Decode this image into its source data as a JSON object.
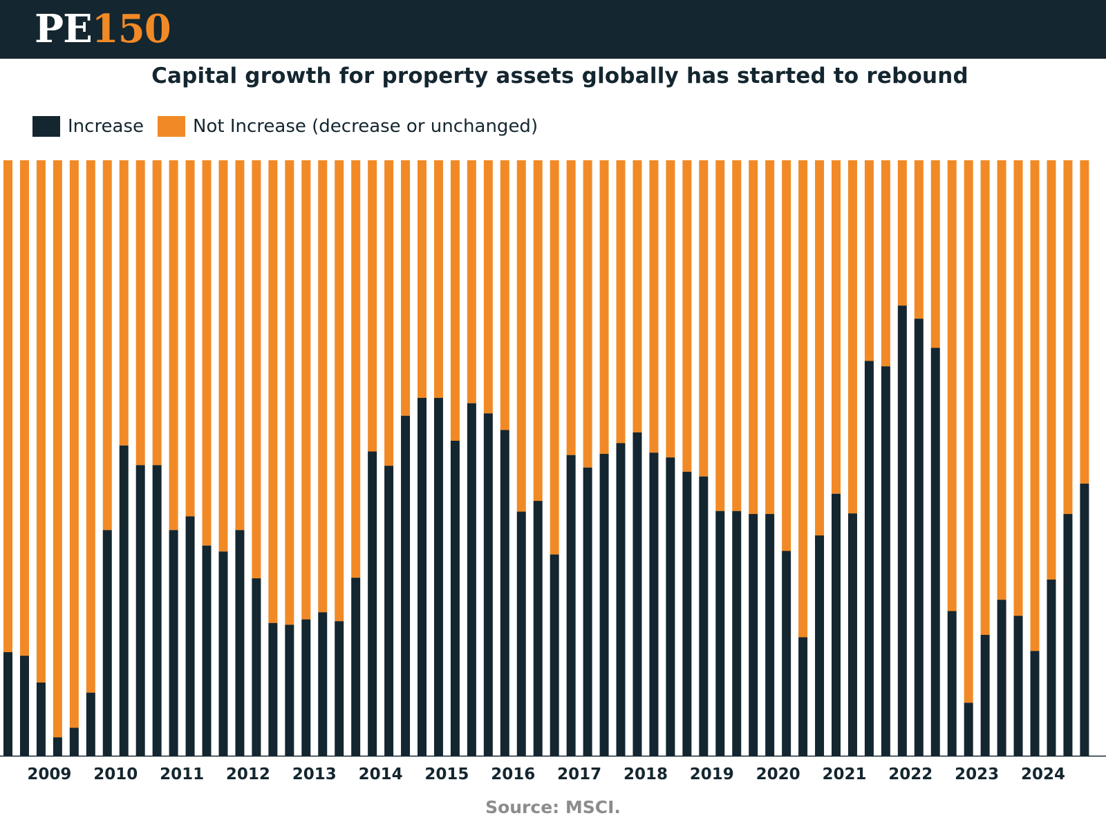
{
  "brand": {
    "pe": "PE",
    "num": "150"
  },
  "colors": {
    "header_bg": "#14262f",
    "increase": "#14262f",
    "not_increase": "#f18a26",
    "source_text": "#8c8c8c"
  },
  "chart_data": {
    "type": "bar",
    "stacked": true,
    "normalized_100_percent": true,
    "title": "Capital growth for property assets globally has started to rebound",
    "source": "Source: MSCI.",
    "legend_position": "top-left",
    "grid": false,
    "x_tick_labels": [
      "2009",
      "2010",
      "2011",
      "2012",
      "2013",
      "2014",
      "2015",
      "2016",
      "2017",
      "2018",
      "2019",
      "2020",
      "2021",
      "2022",
      "2023",
      "2024"
    ],
    "bars_per_year": 4,
    "series": [
      {
        "name": "Increase",
        "values": [
          17.4,
          16.8,
          12.3,
          3.1,
          4.7,
          10.6,
          37.9,
          52.1,
          48.8,
          48.8,
          37.9,
          40.2,
          35.3,
          34.3,
          37.9,
          29.8,
          22.3,
          22.0,
          22.9,
          24.1,
          22.6,
          29.9,
          51.1,
          48.7,
          57.1,
          60.1,
          60.1,
          52.9,
          59.2,
          57.5,
          54.7,
          41.0,
          42.8,
          33.8,
          50.5,
          48.4,
          50.7,
          52.5,
          54.3,
          50.9,
          50.1,
          47.7,
          46.9,
          41.1,
          41.1,
          40.6,
          40.6,
          34.4,
          19.9,
          37.0,
          44.0,
          40.7,
          66.3,
          65.4,
          75.6,
          73.4,
          68.5,
          24.3,
          8.9,
          20.3,
          26.2,
          23.5,
          17.6,
          29.6,
          40.6,
          45.7
        ]
      },
      {
        "name": "Not Increase (decrease or unchanged)",
        "values": [
          82.6,
          83.2,
          87.7,
          96.9,
          95.3,
          89.4,
          62.1,
          47.9,
          51.2,
          51.2,
          62.1,
          59.8,
          64.7,
          65.7,
          62.1,
          70.2,
          77.7,
          78.0,
          77.1,
          75.9,
          77.4,
          70.1,
          48.9,
          51.3,
          42.9,
          39.9,
          39.9,
          47.1,
          40.8,
          42.5,
          45.3,
          59.0,
          57.2,
          66.2,
          49.5,
          51.6,
          49.3,
          47.5,
          45.7,
          49.1,
          49.9,
          52.3,
          53.1,
          58.9,
          58.9,
          59.4,
          59.4,
          65.6,
          80.1,
          63.0,
          56.0,
          59.3,
          33.7,
          34.6,
          24.4,
          26.6,
          31.5,
          75.7,
          91.1,
          79.7,
          73.8,
          76.5,
          82.4,
          70.4,
          59.4,
          54.3
        ]
      }
    ]
  }
}
